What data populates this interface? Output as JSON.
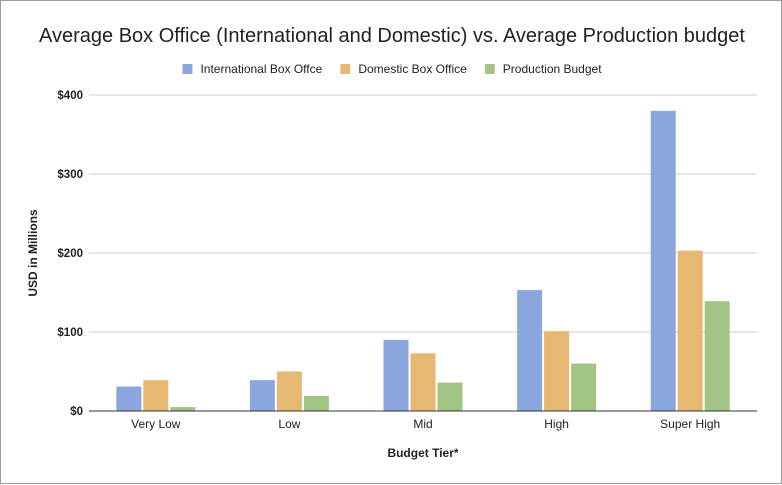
{
  "chart_data": {
    "type": "bar",
    "title": "Average Box Office (International and Domestic) vs. Average Production budget",
    "xlabel": "Budget Tier*",
    "ylabel": "USD in Millions",
    "categories": [
      "Very Low",
      "Low",
      "Mid",
      "High",
      "Super High"
    ],
    "series": [
      {
        "name": "International Box Offce",
        "color": "#8aa6dc",
        "values": [
          31,
          39,
          90,
          153,
          380
        ]
      },
      {
        "name": "Domestic Box Office",
        "color": "#e6b872",
        "values": [
          39,
          50,
          73,
          101,
          203
        ]
      },
      {
        "name": "Production Budget",
        "color": "#a2c485",
        "values": [
          5,
          19,
          36,
          60,
          139
        ]
      }
    ],
    "ylim": [
      0,
      400
    ],
    "yticks": [
      0,
      100,
      200,
      300,
      400
    ],
    "ytick_labels": [
      "$0",
      "$100",
      "$200",
      "$300",
      "$400"
    ],
    "grid": true,
    "legend_position": "top-center"
  }
}
